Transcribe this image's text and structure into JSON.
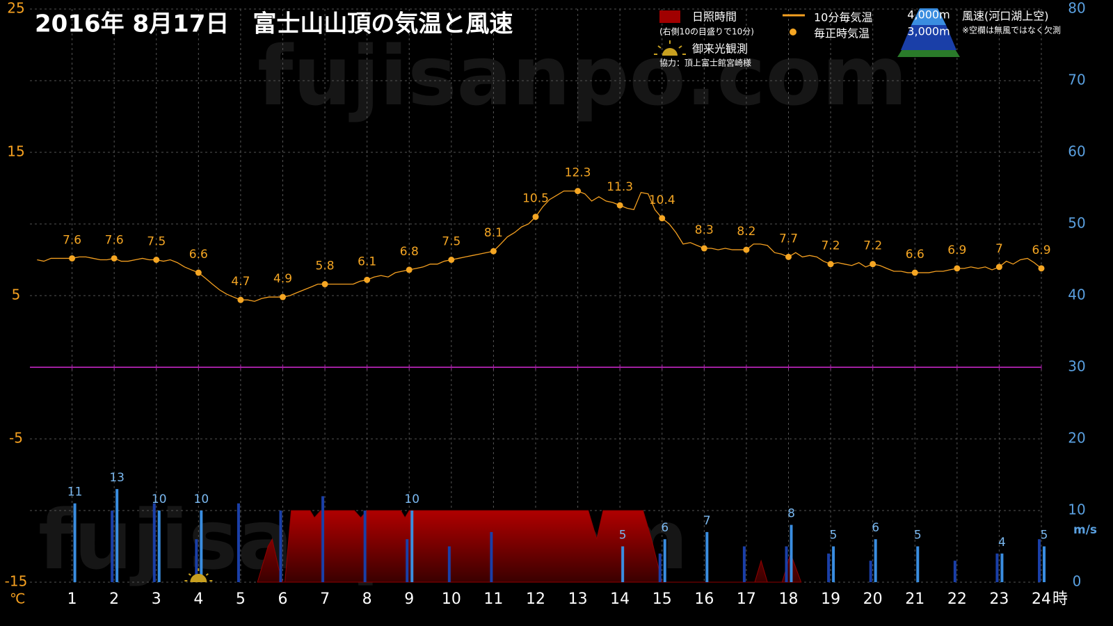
{
  "chart_data": {
    "type": "weather",
    "title": "2016年  8月17日　富士山山頂の気温と風速",
    "watermark": "fujisanpo.com",
    "x_unit": "時",
    "y_unit": "℃",
    "y2_unit": "m/s",
    "xlim": [
      0,
      24
    ],
    "xticks": [
      1,
      2,
      3,
      4,
      5,
      6,
      7,
      8,
      9,
      10,
      11,
      12,
      13,
      14,
      15,
      16,
      17,
      18,
      19,
      20,
      21,
      22,
      23,
      24
    ],
    "ylim": [
      -15,
      25
    ],
    "yticks": [
      -15,
      -5,
      5,
      15,
      25
    ],
    "y2lim": [
      0,
      80
    ],
    "y2ticks": [
      0,
      10,
      20,
      30,
      40,
      50,
      60,
      70,
      80
    ],
    "grid": true,
    "zero_line_color": "#a020a0",
    "sunshine": {
      "name": "日照時間",
      "note": "(右側10の目盛りで10分)",
      "color": "#a00000",
      "axis": "y2",
      "x": [
        5.4,
        5.65,
        5.75,
        5.9,
        6.0,
        6.05,
        6.2,
        6.65,
        6.75,
        6.9,
        7.7,
        7.85,
        8.0,
        8.8,
        8.9,
        9.0,
        13.25,
        13.45,
        13.6,
        14.55,
        14.75,
        15.0,
        17.2,
        17.35,
        17.5,
        17.85,
        18.05,
        18.3
      ],
      "values": [
        0,
        5,
        6,
        2,
        0,
        0,
        10,
        10,
        9,
        10,
        10,
        9,
        10,
        10,
        9,
        10,
        10,
        6,
        10,
        10,
        6,
        0,
        0,
        3,
        0,
        0,
        4,
        0
      ]
    },
    "temperature_10min": {
      "name": "10分毎気温",
      "color": "#f5a020",
      "x": [
        0.17,
        0.33,
        0.5,
        0.67,
        0.83,
        1,
        1.17,
        1.33,
        1.5,
        1.67,
        1.83,
        2,
        2.17,
        2.33,
        2.5,
        2.67,
        2.83,
        3,
        3.17,
        3.33,
        3.5,
        3.67,
        3.83,
        4,
        4.17,
        4.33,
        4.5,
        4.67,
        4.83,
        5,
        5.17,
        5.33,
        5.5,
        5.67,
        5.83,
        6,
        6.17,
        6.33,
        6.5,
        6.67,
        6.83,
        7,
        7.17,
        7.33,
        7.5,
        7.67,
        7.83,
        8,
        8.17,
        8.33,
        8.5,
        8.67,
        8.83,
        9,
        9.17,
        9.33,
        9.5,
        9.67,
        9.83,
        10,
        10.17,
        10.33,
        10.5,
        10.67,
        10.83,
        11,
        11.17,
        11.33,
        11.5,
        11.67,
        11.83,
        12,
        12.17,
        12.33,
        12.5,
        12.67,
        12.83,
        13,
        13.17,
        13.33,
        13.5,
        13.67,
        13.83,
        14,
        14.17,
        14.33,
        14.5,
        14.67,
        14.83,
        15,
        15.17,
        15.33,
        15.5,
        15.67,
        15.83,
        16,
        16.17,
        16.33,
        16.5,
        16.67,
        16.83,
        17,
        17.17,
        17.33,
        17.5,
        17.67,
        17.83,
        18,
        18.17,
        18.33,
        18.5,
        18.67,
        18.83,
        19,
        19.17,
        19.33,
        19.5,
        19.67,
        19.83,
        20,
        20.17,
        20.33,
        20.5,
        20.67,
        20.83,
        21,
        21.17,
        21.33,
        21.5,
        21.67,
        21.83,
        22,
        22.17,
        22.33,
        22.5,
        22.67,
        22.83,
        23,
        23.17,
        23.33,
        23.5,
        23.67,
        23.83,
        24
      ],
      "values": [
        7.5,
        7.4,
        7.6,
        7.6,
        7.6,
        7.6,
        7.7,
        7.7,
        7.6,
        7.5,
        7.5,
        7.6,
        7.4,
        7.4,
        7.5,
        7.6,
        7.5,
        7.5,
        7.4,
        7.5,
        7.3,
        7.0,
        6.8,
        6.6,
        6.2,
        5.8,
        5.4,
        5.1,
        4.9,
        4.7,
        4.7,
        4.6,
        4.8,
        4.9,
        4.9,
        4.9,
        5.0,
        5.2,
        5.4,
        5.6,
        5.8,
        5.8,
        5.8,
        5.8,
        5.8,
        5.8,
        6.0,
        6.1,
        6.3,
        6.4,
        6.3,
        6.6,
        6.7,
        6.8,
        6.9,
        7.0,
        7.2,
        7.2,
        7.4,
        7.5,
        7.6,
        7.7,
        7.8,
        7.9,
        8.0,
        8.1,
        8.6,
        9.1,
        9.4,
        9.8,
        10.0,
        10.5,
        11.2,
        11.7,
        12.0,
        12.3,
        12.3,
        12.3,
        12.1,
        11.6,
        11.9,
        11.6,
        11.5,
        11.3,
        11.1,
        11.0,
        12.2,
        12.1,
        11.0,
        10.4,
        10.0,
        9.4,
        8.6,
        8.7,
        8.5,
        8.3,
        8.3,
        8.2,
        8.3,
        8.2,
        8.2,
        8.2,
        8.6,
        8.6,
        8.5,
        8.0,
        7.9,
        7.7,
        8.0,
        7.7,
        7.8,
        7.7,
        7.4,
        7.2,
        7.3,
        7.2,
        7.1,
        7.3,
        7.0,
        7.2,
        7.1,
        6.9,
        6.7,
        6.7,
        6.6,
        6.6,
        6.6,
        6.6,
        6.7,
        6.7,
        6.8,
        6.9,
        6.9,
        7.0,
        6.9,
        7.0,
        6.8,
        7.0,
        7.4,
        7.2,
        7.5,
        7.6,
        7.3,
        6.9
      ]
    },
    "temperature_hourly": {
      "name": "毎正時気温",
      "color": "#f5a623",
      "x": [
        1,
        2,
        3,
        4,
        5,
        6,
        7,
        8,
        9,
        10,
        11,
        12,
        13,
        14,
        15,
        16,
        17,
        18,
        19,
        20,
        21,
        22,
        23,
        24
      ],
      "values": [
        7.6,
        7.6,
        7.5,
        6.6,
        4.7,
        4.9,
        5.8,
        6.1,
        6.8,
        7.5,
        8.1,
        10.5,
        12.3,
        11.3,
        10.4,
        8.3,
        8.2,
        7.7,
        7.2,
        7.2,
        6.6,
        6.9,
        7,
        6.9
      ]
    },
    "wind": {
      "title": "風速(河口湖上空)",
      "note": "※空欄は無風ではなく欠測",
      "axis": "y2",
      "x": [
        1,
        2,
        3,
        4,
        5,
        6,
        7,
        8,
        9,
        10,
        11,
        12,
        13,
        14,
        15,
        16,
        17,
        18,
        19,
        20,
        21,
        22,
        23,
        24
      ],
      "series": [
        {
          "name": "4,000m",
          "color": "#3a8de0",
          "label_color": "#7ab8f0",
          "values": [
            11,
            13,
            10,
            10,
            null,
            null,
            null,
            null,
            10,
            null,
            null,
            null,
            null,
            5,
            6,
            7,
            null,
            8,
            5,
            6,
            5,
            null,
            4,
            5
          ]
        },
        {
          "name": "3,000m",
          "color": "#1a3fa8",
          "values": [
            null,
            10,
            11,
            6,
            11,
            10,
            12,
            10,
            6,
            5,
            7,
            null,
            null,
            null,
            4,
            null,
            5,
            5,
            4,
            3,
            null,
            3,
            4,
            6
          ]
        }
      ]
    },
    "sunrise": {
      "name": "御来光観測",
      "x": 4
    },
    "credit": "協力：頂上富士館宮崎様"
  }
}
